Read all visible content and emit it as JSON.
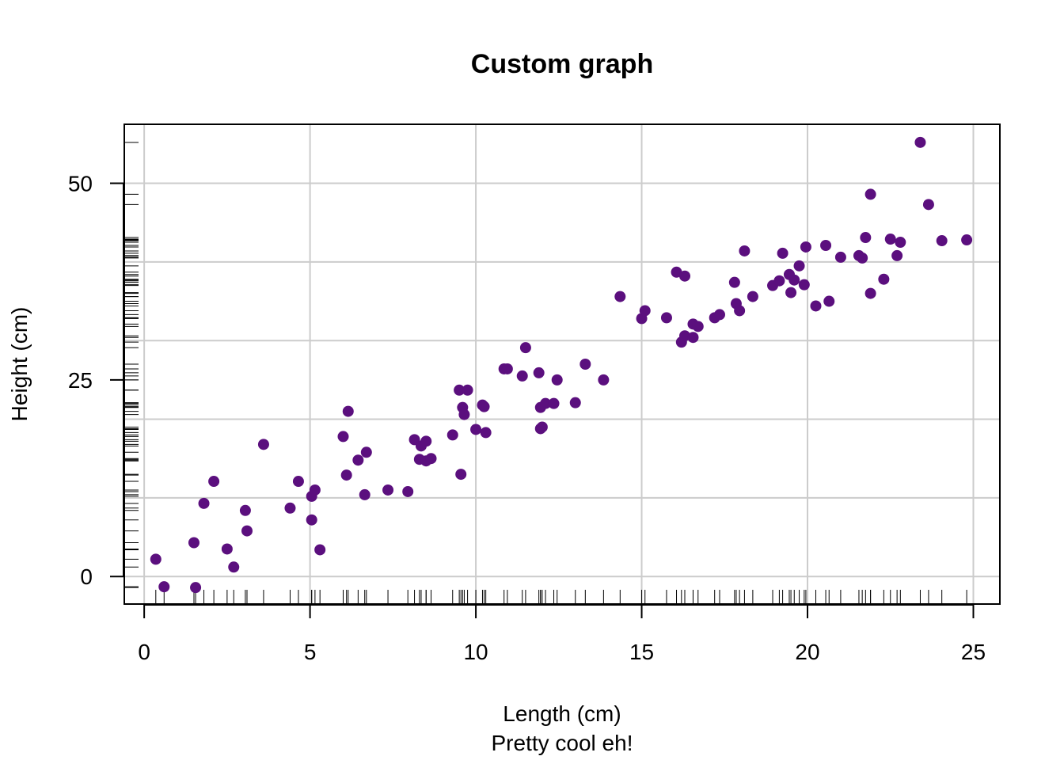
{
  "chart_data": {
    "type": "scatter",
    "title": "Custom graph",
    "xlabel": "Length (cm)",
    "sublabel": "Pretty cool eh!",
    "ylabel": "Height (cm)",
    "xlim": [
      -0.6,
      25.8
    ],
    "ylim": [
      -3.5,
      57.5
    ],
    "x_ticks": [
      0,
      5,
      10,
      15,
      20,
      25
    ],
    "y_ticks": [
      0,
      25,
      50
    ],
    "x_grid": [
      0,
      5,
      10,
      15,
      20,
      25
    ],
    "y_grid": [
      0,
      10,
      20,
      30,
      40,
      50
    ],
    "grid": true,
    "rug": true,
    "point_color": "#5b0f7e",
    "grid_color": "#cccccc",
    "points": [
      [
        0.35,
        2.2
      ],
      [
        0.6,
        -1.3
      ],
      [
        1.5,
        4.3
      ],
      [
        1.55,
        -1.4
      ],
      [
        1.8,
        9.3
      ],
      [
        2.1,
        12.1
      ],
      [
        2.5,
        3.5
      ],
      [
        2.7,
        1.2
      ],
      [
        3.05,
        8.4
      ],
      [
        3.1,
        5.8
      ],
      [
        3.6,
        16.8
      ],
      [
        4.4,
        8.7
      ],
      [
        4.65,
        12.1
      ],
      [
        5.05,
        10.2
      ],
      [
        5.05,
        7.2
      ],
      [
        5.15,
        11.0
      ],
      [
        5.3,
        3.4
      ],
      [
        6.0,
        17.8
      ],
      [
        6.1,
        12.9
      ],
      [
        6.15,
        21.0
      ],
      [
        6.45,
        14.8
      ],
      [
        6.65,
        10.4
      ],
      [
        6.7,
        15.8
      ],
      [
        7.35,
        11.0
      ],
      [
        7.95,
        10.8
      ],
      [
        8.15,
        17.4
      ],
      [
        8.3,
        14.9
      ],
      [
        8.35,
        16.6
      ],
      [
        8.5,
        17.2
      ],
      [
        8.5,
        14.7
      ],
      [
        8.65,
        15.0
      ],
      [
        9.3,
        18.0
      ],
      [
        9.5,
        23.7
      ],
      [
        9.55,
        13.0
      ],
      [
        9.6,
        21.5
      ],
      [
        9.65,
        20.6
      ],
      [
        9.75,
        23.7
      ],
      [
        10.0,
        18.7
      ],
      [
        10.2,
        21.8
      ],
      [
        10.25,
        21.6
      ],
      [
        10.3,
        18.3
      ],
      [
        10.85,
        26.4
      ],
      [
        10.95,
        26.4
      ],
      [
        11.4,
        25.5
      ],
      [
        11.5,
        29.1
      ],
      [
        11.9,
        25.9
      ],
      [
        11.95,
        18.8
      ],
      [
        11.95,
        21.5
      ],
      [
        12.0,
        19.0
      ],
      [
        12.1,
        22.0
      ],
      [
        12.35,
        22.0
      ],
      [
        12.45,
        25.0
      ],
      [
        13.0,
        22.1
      ],
      [
        13.3,
        27.0
      ],
      [
        13.85,
        25.0
      ],
      [
        14.35,
        35.6
      ],
      [
        15.0,
        32.8
      ],
      [
        15.1,
        33.8
      ],
      [
        15.75,
        32.9
      ],
      [
        16.05,
        38.7
      ],
      [
        16.2,
        29.8
      ],
      [
        16.3,
        30.6
      ],
      [
        16.3,
        38.2
      ],
      [
        16.55,
        32.1
      ],
      [
        16.55,
        30.4
      ],
      [
        16.7,
        31.8
      ],
      [
        17.2,
        32.9
      ],
      [
        17.35,
        33.3
      ],
      [
        17.8,
        37.4
      ],
      [
        17.85,
        34.7
      ],
      [
        17.95,
        33.8
      ],
      [
        18.1,
        41.4
      ],
      [
        18.35,
        35.6
      ],
      [
        18.95,
        37.0
      ],
      [
        19.15,
        37.6
      ],
      [
        19.25,
        41.1
      ],
      [
        19.45,
        38.4
      ],
      [
        19.5,
        36.1
      ],
      [
        19.6,
        37.7
      ],
      [
        19.75,
        39.5
      ],
      [
        19.9,
        37.1
      ],
      [
        19.95,
        41.9
      ],
      [
        20.25,
        34.4
      ],
      [
        20.55,
        42.1
      ],
      [
        20.65,
        35.0
      ],
      [
        21.0,
        40.6
      ],
      [
        21.55,
        40.8
      ],
      [
        21.65,
        40.5
      ],
      [
        21.75,
        43.1
      ],
      [
        21.9,
        36.0
      ],
      [
        21.9,
        48.6
      ],
      [
        22.3,
        37.8
      ],
      [
        22.5,
        42.9
      ],
      [
        22.7,
        40.8
      ],
      [
        22.8,
        42.5
      ],
      [
        23.4,
        55.2
      ],
      [
        23.65,
        47.3
      ],
      [
        24.05,
        42.7
      ],
      [
        24.8,
        42.8
      ]
    ]
  }
}
